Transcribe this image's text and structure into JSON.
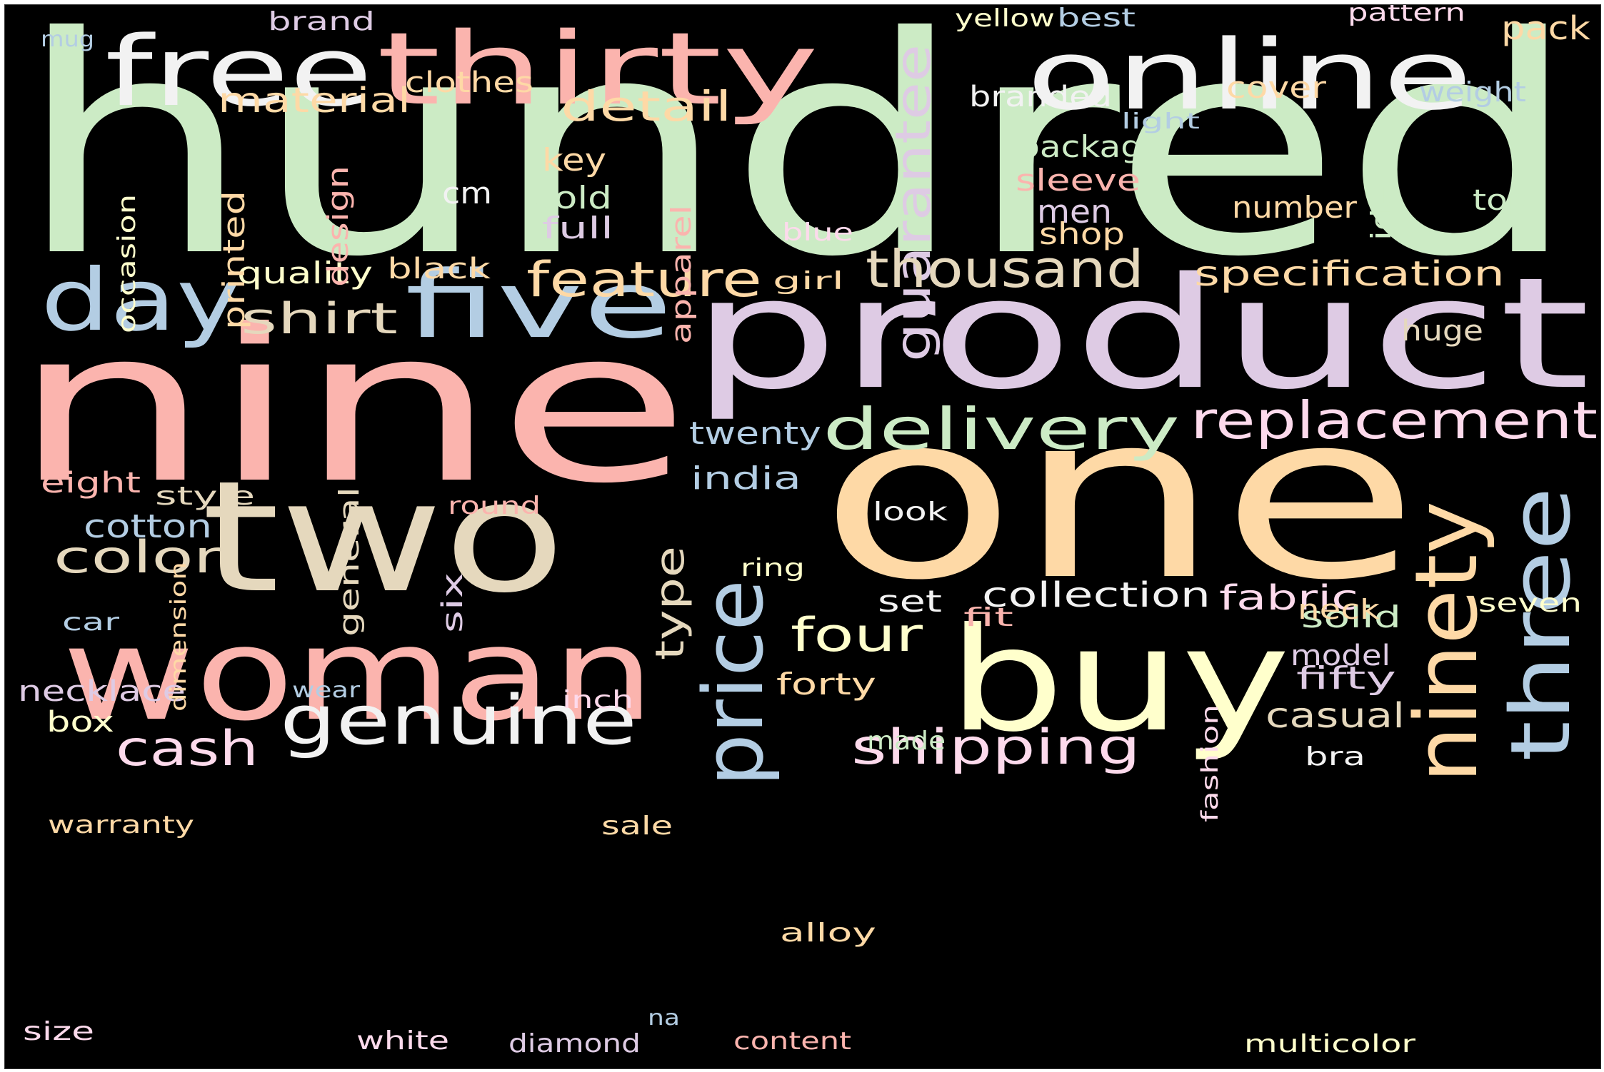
{
  "palette": {
    "green": "#CCEBC5",
    "salmon": "#FBB4AE",
    "peach": "#FED9A6",
    "lavender": "#DECBE4",
    "blue": "#B3CDE3",
    "yellow": "#FFFFCC",
    "tan": "#E5D8BD",
    "pink": "#FDDAEC",
    "white": "#F2F2F2"
  },
  "words": [
    {
      "text": "hundred",
      "color": "green"
    },
    {
      "text": "one",
      "color": "peach"
    },
    {
      "text": "nine",
      "color": "salmon"
    },
    {
      "text": "product",
      "color": "lavender"
    },
    {
      "text": "two",
      "color": "tan"
    },
    {
      "text": "woman",
      "color": "salmon"
    },
    {
      "text": "buy",
      "color": "yellow"
    },
    {
      "text": "online",
      "color": "white"
    },
    {
      "text": "thirty",
      "color": "salmon"
    },
    {
      "text": "free",
      "color": "white"
    },
    {
      "text": "five",
      "color": "blue"
    },
    {
      "text": "day",
      "color": "blue"
    },
    {
      "text": "price",
      "color": "blue"
    },
    {
      "text": "ninety",
      "color": "peach"
    },
    {
      "text": "three",
      "color": "blue"
    },
    {
      "text": "genuine",
      "color": "white"
    },
    {
      "text": "delivery",
      "color": "green"
    },
    {
      "text": "replacement",
      "color": "pink"
    },
    {
      "text": "guarantee",
      "color": "lavender"
    },
    {
      "text": "thousand",
      "color": "tan"
    },
    {
      "text": "shipping",
      "color": "pink"
    },
    {
      "text": "feature",
      "color": "peach"
    },
    {
      "text": "cash",
      "color": "pink"
    },
    {
      "text": "color",
      "color": "tan"
    },
    {
      "text": "four",
      "color": "yellow"
    },
    {
      "text": "detail",
      "color": "peach"
    },
    {
      "text": "shirt",
      "color": "tan"
    },
    {
      "text": "specification",
      "color": "peach"
    },
    {
      "text": "collection",
      "color": "white"
    },
    {
      "text": "type",
      "color": "tan"
    },
    {
      "text": "material",
      "color": "peach"
    },
    {
      "text": "casual",
      "color": "tan"
    },
    {
      "text": "fabric",
      "color": "pink"
    },
    {
      "text": "pack",
      "color": "peach"
    },
    {
      "text": "cotton",
      "color": "blue"
    },
    {
      "text": "package",
      "color": "green"
    },
    {
      "text": "sleeve",
      "color": "salmon"
    },
    {
      "text": "men",
      "color": "lavender"
    },
    {
      "text": "clothes",
      "color": "peach"
    },
    {
      "text": "branded",
      "color": "white"
    },
    {
      "text": "cover",
      "color": "peach"
    },
    {
      "text": "weight",
      "color": "blue"
    },
    {
      "text": "number",
      "color": "peach"
    },
    {
      "text": "twenty",
      "color": "blue"
    },
    {
      "text": "india",
      "color": "blue"
    },
    {
      "text": "necklace",
      "color": "lavender"
    },
    {
      "text": "fifty",
      "color": "lavender"
    },
    {
      "text": "solid",
      "color": "green"
    },
    {
      "text": "model",
      "color": "lavender"
    },
    {
      "text": "forty",
      "color": "peach"
    },
    {
      "text": "set",
      "color": "white"
    },
    {
      "text": "shop",
      "color": "peach"
    },
    {
      "text": "quality",
      "color": "yellow"
    },
    {
      "text": "black",
      "color": "peach"
    },
    {
      "text": "huge",
      "color": "tan"
    },
    {
      "text": "top",
      "color": "green"
    },
    {
      "text": "key",
      "color": "peach"
    },
    {
      "text": "gold",
      "color": "green"
    },
    {
      "text": "full",
      "color": "lavender"
    },
    {
      "text": "cm",
      "color": "white"
    },
    {
      "text": "printed",
      "color": "peach"
    },
    {
      "text": "design",
      "color": "salmon"
    },
    {
      "text": "apparel",
      "color": "salmon"
    },
    {
      "text": "ideal",
      "color": "green"
    },
    {
      "text": "general",
      "color": "tan"
    },
    {
      "text": "box",
      "color": "yellow"
    },
    {
      "text": "eight",
      "color": "salmon"
    },
    {
      "text": "style",
      "color": "tan"
    },
    {
      "text": "neck",
      "color": "peach"
    },
    {
      "text": "seven",
      "color": "yellow"
    },
    {
      "text": "six",
      "color": "lavender"
    },
    {
      "text": "look",
      "color": "white"
    },
    {
      "text": "brand",
      "color": "lavender"
    },
    {
      "text": "best",
      "color": "blue"
    },
    {
      "text": "yellow",
      "color": "yellow"
    },
    {
      "text": "pattern",
      "color": "pink"
    },
    {
      "text": "mug",
      "color": "blue"
    },
    {
      "text": "warranty",
      "color": "peach"
    },
    {
      "text": "sale",
      "color": "peach"
    },
    {
      "text": "bra",
      "color": "white"
    },
    {
      "text": "diamond",
      "color": "lavender"
    },
    {
      "text": "white",
      "color": "pink"
    },
    {
      "text": "size",
      "color": "pink"
    },
    {
      "text": "multicolor",
      "color": "yellow"
    },
    {
      "text": "content",
      "color": "salmon"
    },
    {
      "text": "alloy",
      "color": "peach"
    },
    {
      "text": "occasion",
      "color": "yellow"
    },
    {
      "text": "blue",
      "color": "pink"
    },
    {
      "text": "girl",
      "color": "peach"
    },
    {
      "text": "light",
      "color": "blue"
    },
    {
      "text": "round",
      "color": "salmon"
    },
    {
      "text": "ring",
      "color": "yellow"
    },
    {
      "text": "fit",
      "color": "salmon"
    },
    {
      "text": "car",
      "color": "blue"
    },
    {
      "text": "dimension",
      "color": "peach"
    },
    {
      "text": "wear",
      "color": "blue"
    },
    {
      "text": "inch",
      "color": "pink"
    },
    {
      "text": "made",
      "color": "green"
    },
    {
      "text": "fashion",
      "color": "pink"
    },
    {
      "text": "na",
      "color": "blue"
    }
  ]
}
